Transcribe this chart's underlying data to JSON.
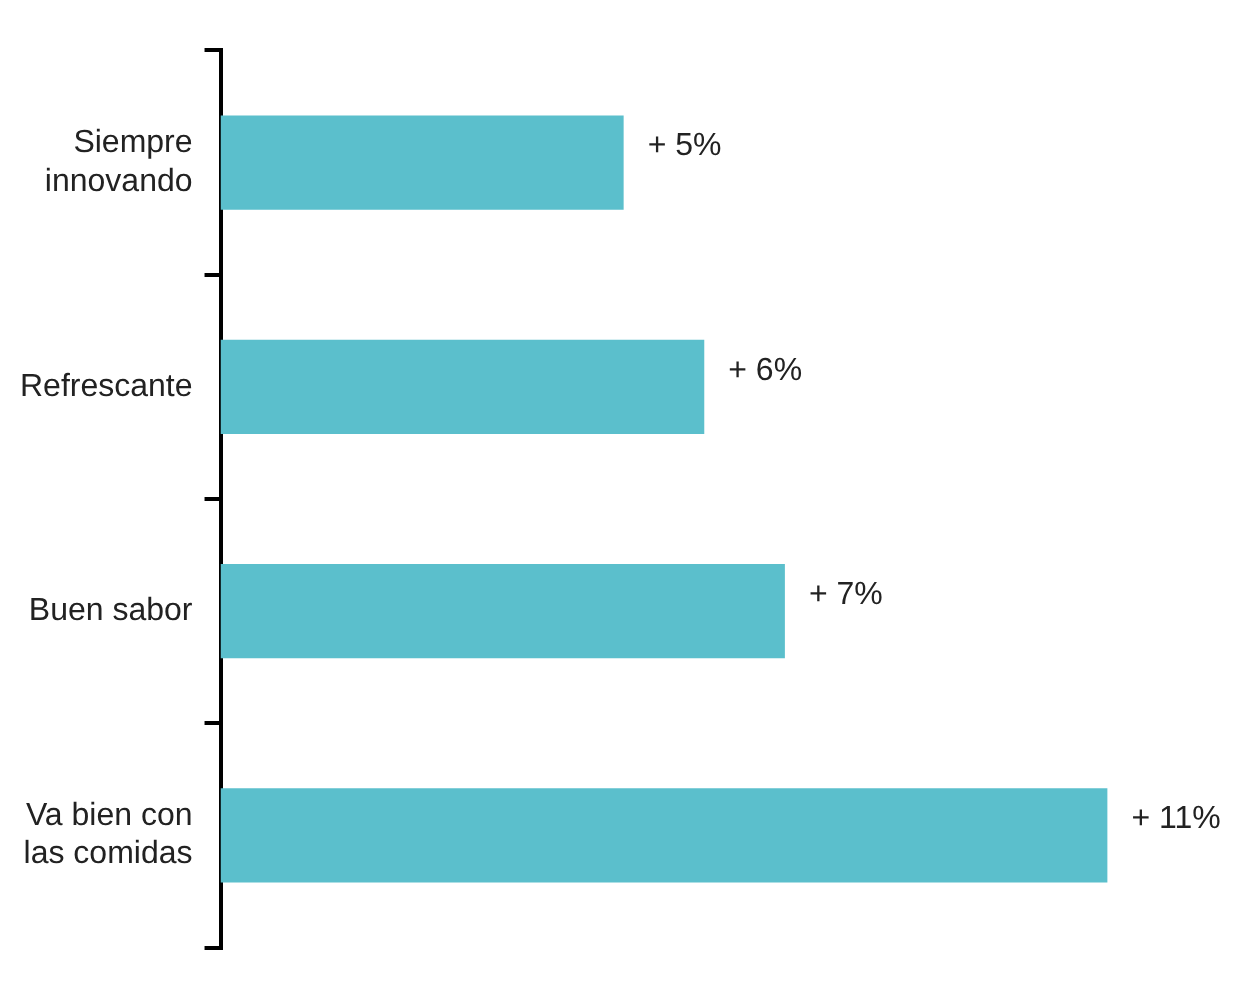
{
  "chart_data": {
    "type": "bar",
    "orientation": "horizontal",
    "categories": [
      "Siempre innovando",
      "Refrescante",
      "Buen sabor",
      "Va bien con las comidas"
    ],
    "values": [
      5,
      6,
      7,
      11
    ],
    "value_labels": [
      "+ 5%",
      "+ 6%",
      "+ 7%",
      "+ 11%"
    ],
    "color": "#5bbfcc"
  }
}
